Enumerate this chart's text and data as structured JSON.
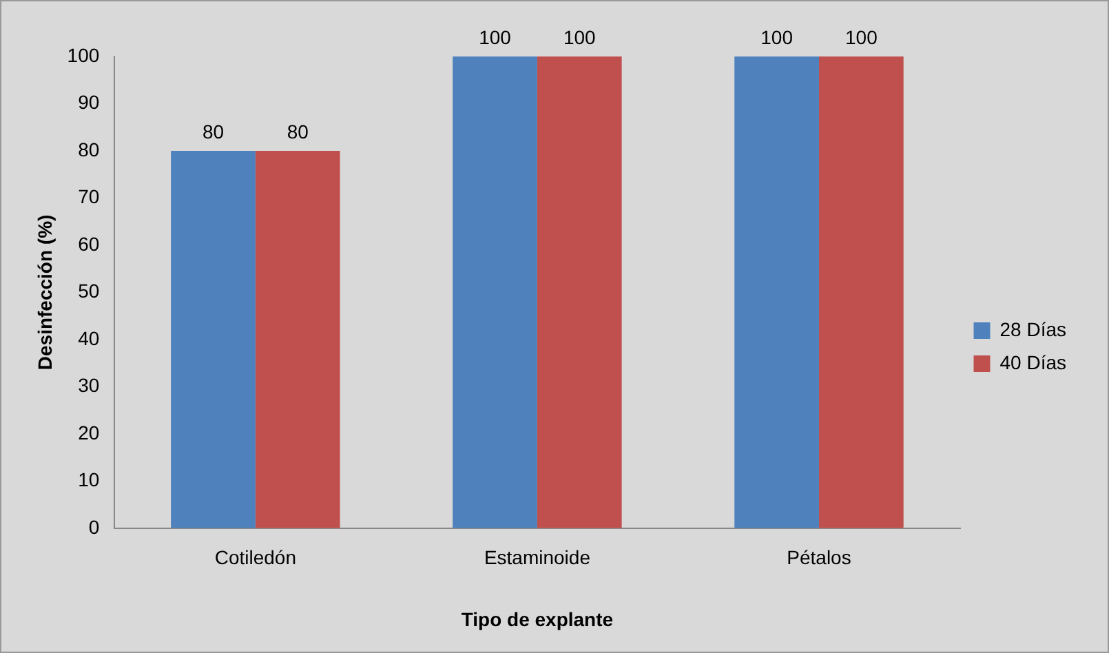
{
  "chart_data": {
    "type": "bar",
    "xlabel": "Tipo de explante",
    "ylabel": "Desinfección (%)",
    "categories": [
      "Cotiledón",
      "Estaminoide",
      "Pétalos"
    ],
    "series": [
      {
        "name": "28 Días",
        "color": "#4f81bd",
        "values": [
          80,
          100,
          100
        ]
      },
      {
        "name": "40 Días",
        "color": "#c0504d",
        "values": [
          80,
          100,
          100
        ]
      }
    ],
    "ylim": [
      0,
      100
    ],
    "yticks": [
      0,
      10,
      20,
      30,
      40,
      50,
      60,
      70,
      80,
      90,
      100
    ],
    "grid": false,
    "legend": "right",
    "data_labels": true
  }
}
